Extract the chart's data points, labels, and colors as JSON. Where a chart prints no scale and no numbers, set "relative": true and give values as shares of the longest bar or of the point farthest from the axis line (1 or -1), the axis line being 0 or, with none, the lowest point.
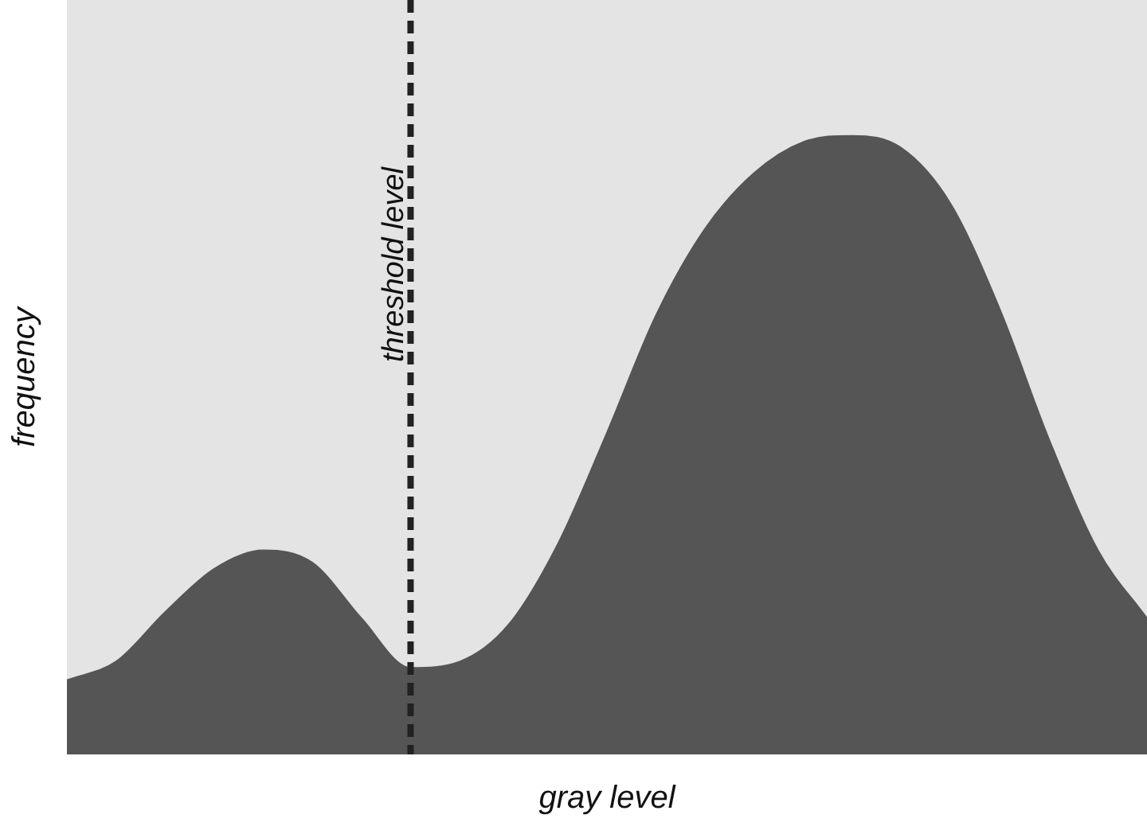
{
  "chart_data": {
    "type": "area",
    "relative": true,
    "xlabel": "gray level",
    "ylabel": "frequency",
    "categories": [
      null,
      null,
      null,
      null,
      null,
      null,
      null,
      null,
      null,
      null,
      null,
      null,
      null,
      null,
      null,
      null,
      null,
      null,
      null,
      null,
      null,
      null,
      null
    ],
    "series": [
      {
        "color": "#555555",
        "values": [
          0.12,
          0.15,
          0.23,
          0.3,
          0.33,
          0.31,
          0.22,
          0.14,
          0.15,
          0.21,
          0.34,
          0.52,
          0.71,
          0.85,
          0.94,
          0.99,
          1,
          0.98,
          0.89,
          0.72,
          0.51,
          0.33,
          0.22
        ]
      }
    ],
    "annotations": [
      "threshold level"
    ],
    "grid": false,
    "legend": false
  }
}
